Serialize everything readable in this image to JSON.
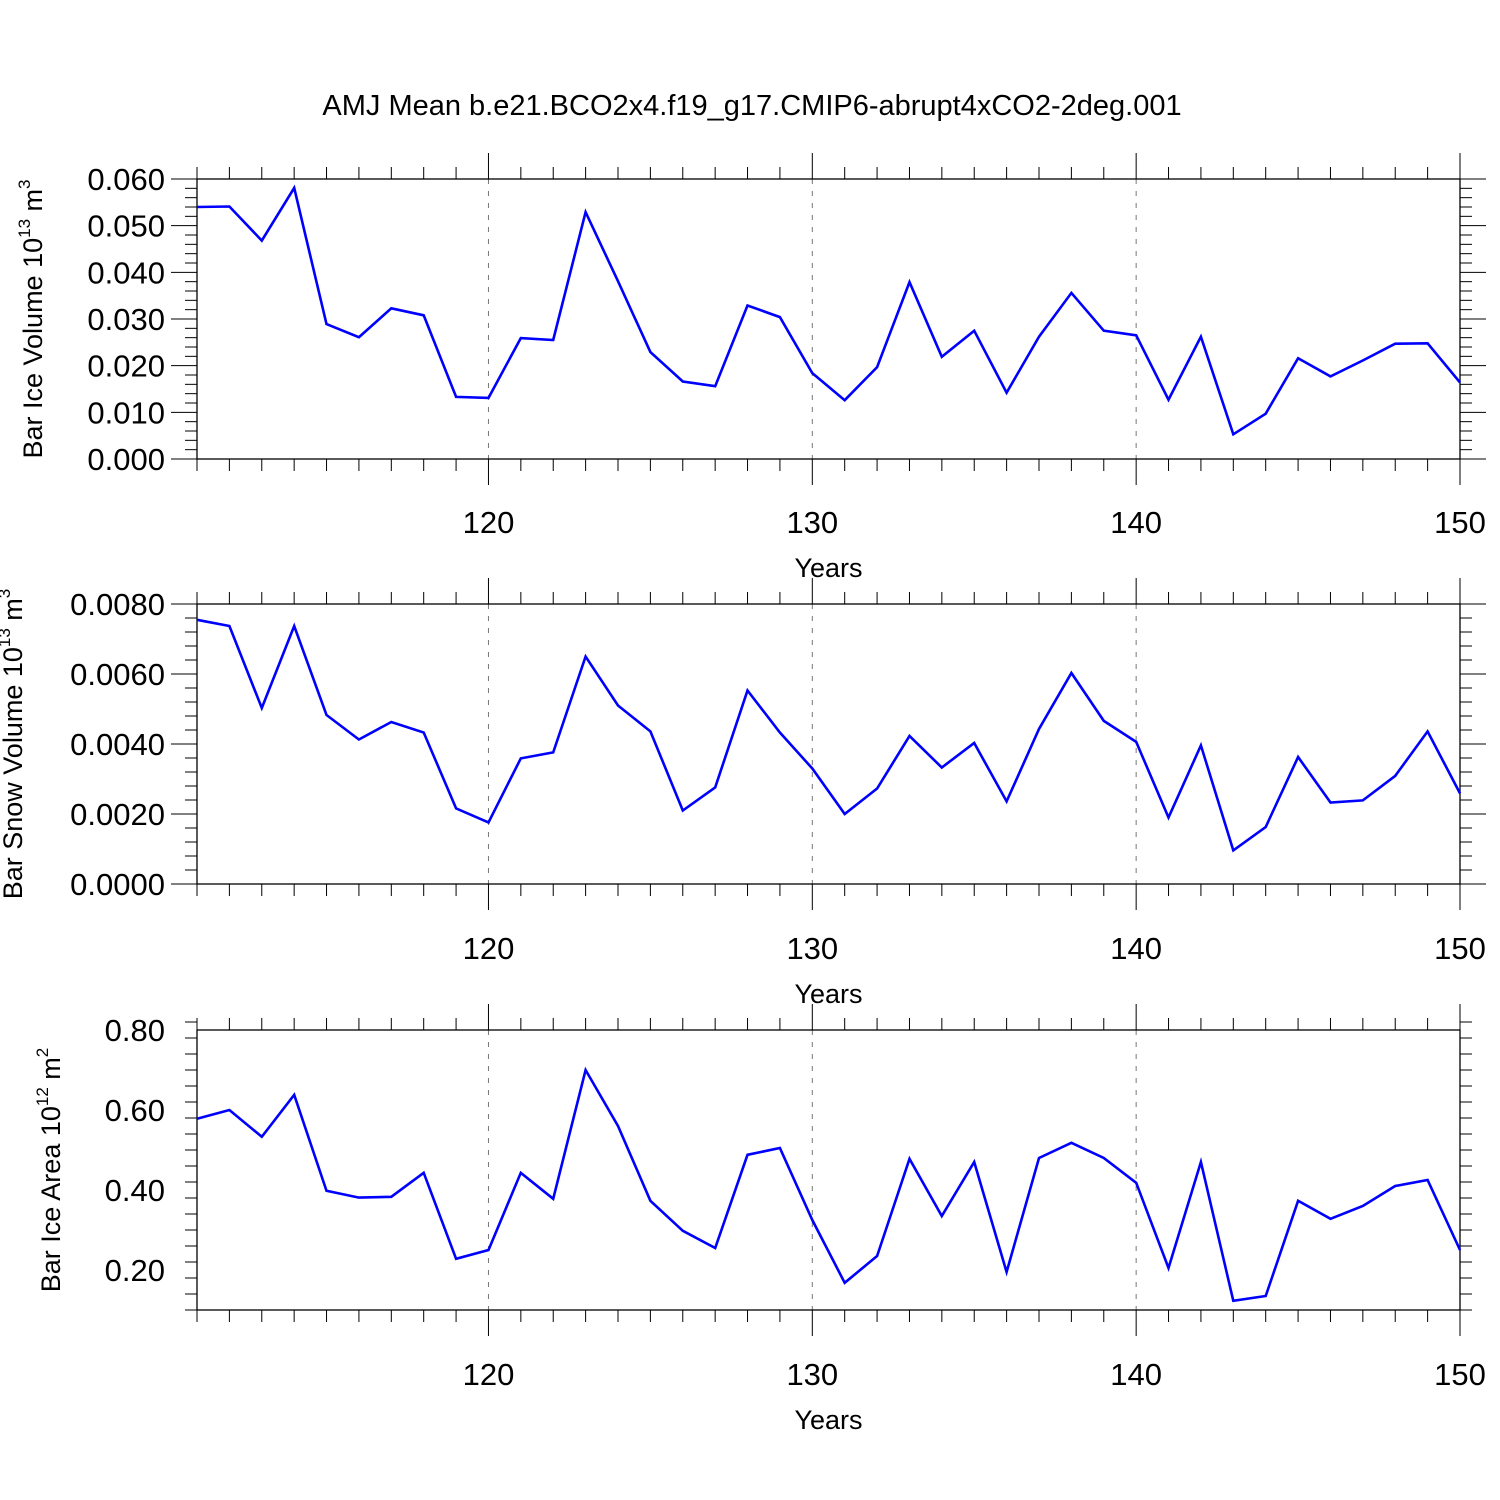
{
  "title": "AMJ Mean b.e21.BCO2x4.f19_g17.CMIP6-abrupt4xCO2-2deg.001",
  "chart_data": [
    {
      "type": "line",
      "ylabel_main": "Bar Ice Volume 10",
      "ylabel_sup": "13",
      "ylabel_unit": " m",
      "ylabel_unit_sup": "3",
      "xlabel": "Years",
      "xlim": [
        111,
        150
      ],
      "ylim": [
        0,
        0.06
      ],
      "yticks": [
        0,
        0.01,
        0.02,
        0.03,
        0.04,
        0.05,
        0.06
      ],
      "yticklabels": [
        "0.000",
        "0.010",
        "0.020",
        "0.030",
        "0.040",
        "0.050",
        "0.060"
      ],
      "xticks": [
        120,
        130,
        140,
        150
      ],
      "xticklabels": [
        "120",
        "130",
        "140",
        "150"
      ],
      "grid": "dashed vertical at major x ticks",
      "line_color": "#0000ff",
      "x": [
        111,
        112,
        113,
        114,
        115,
        116,
        117,
        118,
        119,
        120,
        121,
        122,
        123,
        124,
        125,
        126,
        127,
        128,
        129,
        130,
        131,
        132,
        133,
        134,
        135,
        136,
        137,
        138,
        139,
        140,
        141,
        142,
        143,
        144,
        145,
        146,
        147,
        148,
        149,
        150
      ],
      "y": [
        0.054,
        0.0541,
        0.0468,
        0.0581,
        0.0289,
        0.0261,
        0.0323,
        0.0308,
        0.0133,
        0.0131,
        0.0259,
        0.0255,
        0.0529,
        0.0381,
        0.0229,
        0.0166,
        0.0156,
        0.0329,
        0.0304,
        0.0184,
        0.0126,
        0.0197,
        0.0379,
        0.0219,
        0.0275,
        0.0142,
        0.0262,
        0.0356,
        0.0275,
        0.0265,
        0.0127,
        0.0262,
        0.0053,
        0.0097,
        0.0216,
        0.0177,
        0.0211,
        0.0247,
        0.0248,
        0.0164
      ]
    },
    {
      "type": "line",
      "ylabel_main": "Bar Snow Volume 10",
      "ylabel_sup": "13",
      "ylabel_unit": " m",
      "ylabel_unit_sup": "3",
      "xlabel": "Years",
      "xlim": [
        111,
        150
      ],
      "ylim": [
        0,
        0.008
      ],
      "yticks": [
        0,
        0.002,
        0.004,
        0.006,
        0.008
      ],
      "yticklabels": [
        "0.0000",
        "0.0020",
        "0.0040",
        "0.0060",
        "0.0080"
      ],
      "xticks": [
        120,
        130,
        140,
        150
      ],
      "xticklabels": [
        "120",
        "130",
        "140",
        "150"
      ],
      "grid": "dashed vertical at major x ticks",
      "line_color": "#0000ff",
      "x": [
        111,
        112,
        113,
        114,
        115,
        116,
        117,
        118,
        119,
        120,
        121,
        122,
        123,
        124,
        125,
        126,
        127,
        128,
        129,
        130,
        131,
        132,
        133,
        134,
        135,
        136,
        137,
        138,
        139,
        140,
        141,
        142,
        143,
        144,
        145,
        146,
        147,
        148,
        149,
        150
      ],
      "y": [
        0.00755,
        0.00737,
        0.00503,
        0.00737,
        0.00483,
        0.00413,
        0.00463,
        0.00433,
        0.00216,
        0.00176,
        0.00359,
        0.00376,
        0.0065,
        0.0051,
        0.00436,
        0.0021,
        0.00276,
        0.00553,
        0.00433,
        0.0033,
        0.002,
        0.00273,
        0.00423,
        0.00333,
        0.00403,
        0.00236,
        0.00443,
        0.00603,
        0.00466,
        0.00406,
        0.0019,
        0.00396,
        0.00096,
        0.00163,
        0.00363,
        0.00233,
        0.00239,
        0.00309,
        0.00436,
        0.00259
      ]
    },
    {
      "type": "line",
      "ylabel_main": "Bar Ice Area 10",
      "ylabel_sup": "12",
      "ylabel_unit": " m",
      "ylabel_unit_sup": "2",
      "xlabel": "Years",
      "xlim": [
        111,
        150
      ],
      "ylim": [
        0.1,
        0.8
      ],
      "yticks": [
        0.2,
        0.4,
        0.6,
        0.8
      ],
      "yticklabels": [
        "0.20",
        "0.40",
        "0.60",
        "0.80"
      ],
      "xticks": [
        120,
        130,
        140,
        150
      ],
      "xticklabels": [
        "120",
        "130",
        "140",
        "150"
      ],
      "grid": "dashed vertical at major x ticks",
      "line_color": "#0000ff",
      "x": [
        111,
        112,
        113,
        114,
        115,
        116,
        117,
        118,
        119,
        120,
        121,
        122,
        123,
        124,
        125,
        126,
        127,
        128,
        129,
        130,
        131,
        132,
        133,
        134,
        135,
        136,
        137,
        138,
        139,
        140,
        141,
        142,
        143,
        144,
        145,
        146,
        147,
        148,
        149,
        150
      ],
      "y": [
        0.578,
        0.6,
        0.533,
        0.638,
        0.398,
        0.381,
        0.383,
        0.443,
        0.228,
        0.25,
        0.443,
        0.378,
        0.7,
        0.56,
        0.373,
        0.298,
        0.255,
        0.488,
        0.505,
        0.325,
        0.168,
        0.235,
        0.478,
        0.335,
        0.47,
        0.195,
        0.48,
        0.518,
        0.48,
        0.418,
        0.205,
        0.47,
        0.123,
        0.135,
        0.373,
        0.328,
        0.36,
        0.41,
        0.425,
        0.25
      ]
    }
  ]
}
